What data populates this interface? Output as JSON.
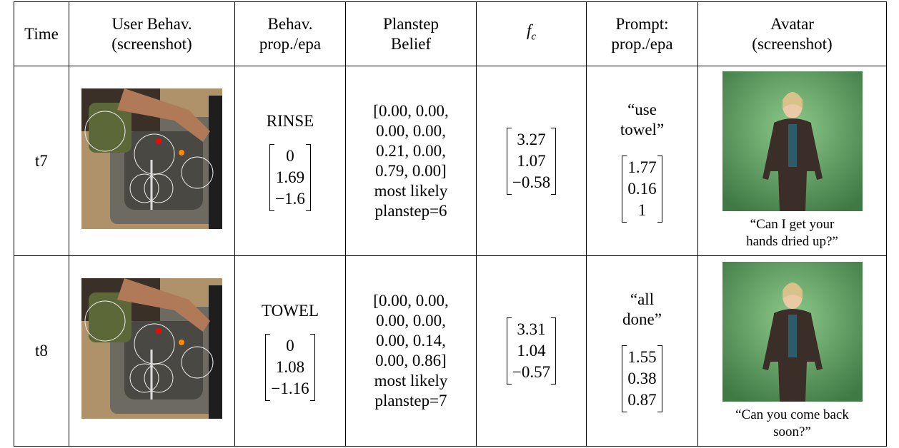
{
  "header": {
    "time": "Time",
    "user_behavior": [
      "User Behav.",
      "(screenshot)"
    ],
    "behavior": [
      "Behav.",
      "prop./epa"
    ],
    "planstep": [
      "Planstep",
      "Belief"
    ],
    "fc": {
      "symbol": "f",
      "subscript": "c"
    },
    "prompt": [
      "Prompt:",
      "prop./epa"
    ],
    "avatar": [
      "Avatar",
      "(screenshot)"
    ]
  },
  "rows": [
    {
      "time": "t7",
      "behavior": "RINSE",
      "behavior_epa": [
        "0",
        "1.69",
        "−1.6"
      ],
      "planstep_belief": [
        "[0.00, 0.00,",
        "0.00, 0.00,",
        "0.21, 0.00,",
        "0.79, 0.00]",
        "most likely",
        "planstep=6"
      ],
      "fc": [
        "3.27",
        "1.07",
        "−0.58"
      ],
      "prompt": [
        "“use",
        "towel”"
      ],
      "prompt_epa": [
        "1.77",
        "0.16",
        "1"
      ],
      "avatar_caption": [
        "“Can I get your",
        "hands dried up?”"
      ]
    },
    {
      "time": "t8",
      "behavior": "TOWEL",
      "behavior_epa": [
        "0",
        "1.08",
        "−1.16"
      ],
      "planstep_belief": [
        "[0.00, 0.00,",
        "0.00, 0.00,",
        "0.00, 0.14,",
        "0.00, 0.86]",
        "most likely",
        "planstep=7"
      ],
      "fc": [
        "3.31",
        "1.04",
        "−0.57"
      ],
      "prompt": [
        "“all",
        "done”"
      ],
      "prompt_epa": [
        "1.55",
        "0.38",
        "0.87"
      ],
      "avatar_caption": [
        "“Can you come back",
        "soon?”"
      ]
    }
  ]
}
